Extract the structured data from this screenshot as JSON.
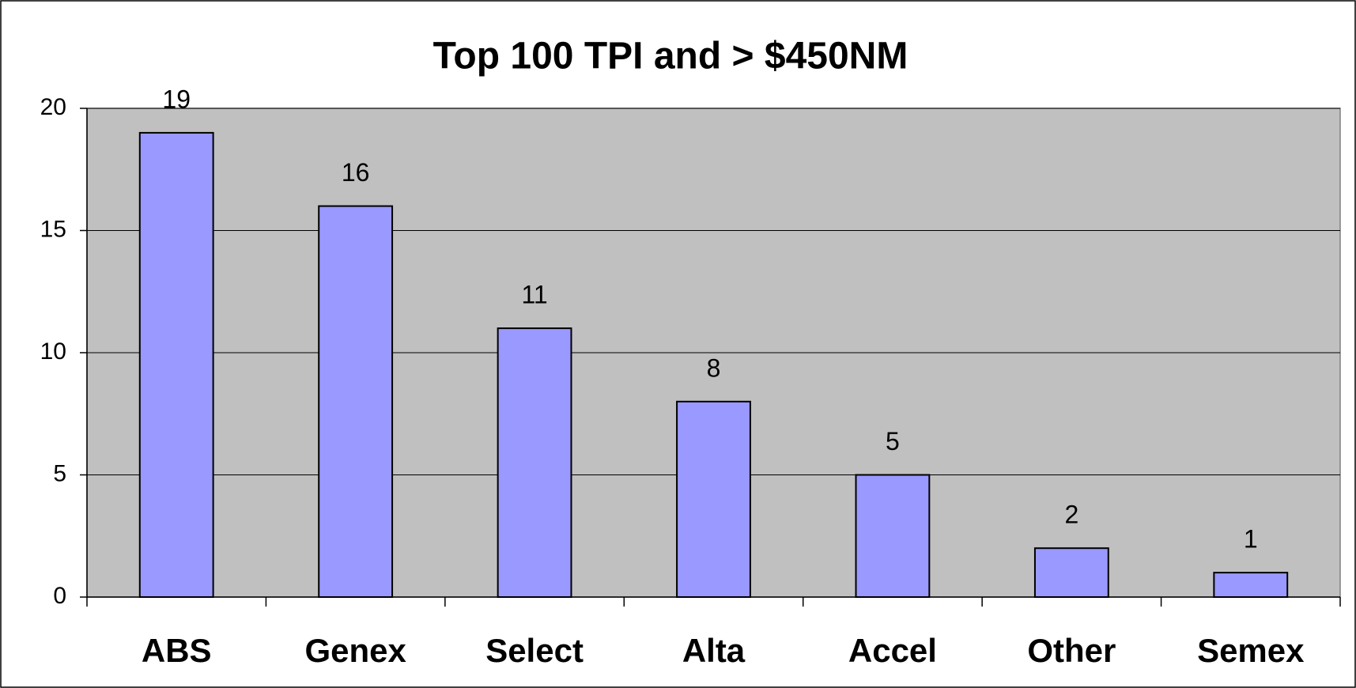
{
  "chart_data": {
    "type": "bar",
    "title": "Top 100 TPI and > $450NM",
    "categories": [
      "ABS",
      "Genex",
      "Select",
      "Alta",
      "Accel",
      "Other",
      "Semex"
    ],
    "values": [
      19,
      16,
      11,
      8,
      5,
      2,
      1
    ],
    "color": "#9999ff",
    "ylim": [
      0,
      20
    ],
    "yticks": [
      0,
      5,
      10,
      15,
      20
    ],
    "grid": true
  }
}
